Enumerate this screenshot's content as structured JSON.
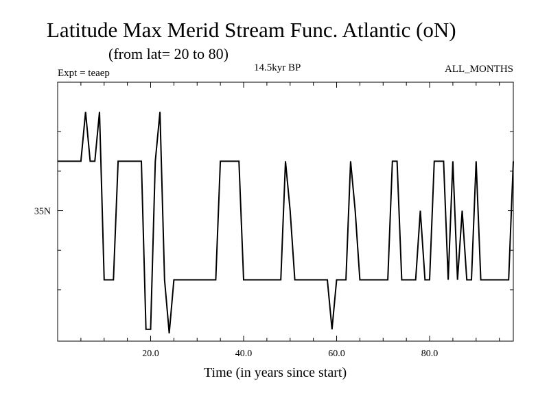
{
  "chart_data": {
    "type": "line",
    "title": "Latitude Max Merid Stream Func. Atlantic (oN)",
    "subtitle": "(from lat= 20 to 80)",
    "left_note": "Expt = teaep",
    "center_note": "14.5kyr BP",
    "right_note": "ALL_MONTHS",
    "xlabel": "Time (in years since start)",
    "ylabel": "",
    "xlim": [
      0,
      98
    ],
    "ylim": [
      28.4,
      41.5
    ],
    "x_major_ticks": [
      20,
      40,
      60,
      80
    ],
    "x_tick_labels": [
      "20.0",
      "40.0",
      "60.0",
      "80.0"
    ],
    "x_minor_ticks": [
      5,
      10,
      15,
      25,
      30,
      35,
      45,
      50,
      55,
      65,
      70,
      75,
      85,
      90,
      95
    ],
    "y_major_ticks": [
      35
    ],
    "y_tick_labels": [
      "35N"
    ],
    "y_minor_ticks": [
      31,
      33,
      37,
      39
    ],
    "series": [
      {
        "name": "Latitude Max",
        "color": "#000000",
        "points": [
          [
            0,
            37.5
          ],
          [
            5,
            37.5
          ],
          [
            6,
            40
          ],
          [
            7,
            37.5
          ],
          [
            8,
            37.5
          ],
          [
            9,
            40
          ],
          [
            10,
            31.5
          ],
          [
            12,
            31.5
          ],
          [
            13,
            37.5
          ],
          [
            18,
            37.5
          ],
          [
            19,
            29
          ],
          [
            20,
            29
          ],
          [
            21,
            37.5
          ],
          [
            22,
            40
          ],
          [
            23,
            31.5
          ],
          [
            24,
            28.8
          ],
          [
            25,
            31.5
          ],
          [
            34,
            31.5
          ],
          [
            35,
            37.5
          ],
          [
            39,
            37.5
          ],
          [
            40,
            31.5
          ],
          [
            48,
            31.5
          ],
          [
            49,
            37.5
          ],
          [
            50,
            35
          ],
          [
            51,
            31.5
          ],
          [
            58,
            31.5
          ],
          [
            59,
            29
          ],
          [
            60,
            31.5
          ],
          [
            62,
            31.5
          ],
          [
            63,
            37.5
          ],
          [
            64,
            35
          ],
          [
            65,
            31.5
          ],
          [
            71,
            31.5
          ],
          [
            72,
            37.5
          ],
          [
            73,
            37.5
          ],
          [
            74,
            31.5
          ],
          [
            77,
            31.5
          ],
          [
            78,
            35
          ],
          [
            79,
            31.5
          ],
          [
            80,
            31.5
          ],
          [
            81,
            37.5
          ],
          [
            83,
            37.5
          ],
          [
            84,
            31.5
          ],
          [
            85,
            37.5
          ],
          [
            86,
            31.5
          ],
          [
            87,
            35
          ],
          [
            88,
            31.5
          ],
          [
            89,
            31.5
          ],
          [
            90,
            37.5
          ],
          [
            91,
            31.5
          ],
          [
            97,
            31.5
          ],
          [
            98,
            37.5
          ]
        ]
      }
    ]
  }
}
